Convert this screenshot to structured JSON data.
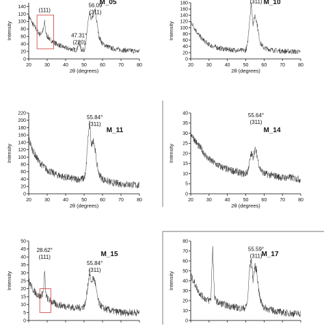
{
  "chart_data": [
    {
      "type": "line",
      "sample_label": "M_05",
      "xlabel": "2θ (degrees)",
      "ylabel": "Intensity",
      "xlim": [
        20,
        80
      ],
      "ylim": [
        0,
        150
      ],
      "xticks": [
        20,
        30,
        40,
        50,
        60,
        70,
        80
      ],
      "yticks": [
        0,
        20,
        40,
        60,
        80,
        100,
        120,
        140
      ],
      "annotations": [
        {
          "lines": [
            "(111)"
          ],
          "x": 28.6,
          "y": 125
        },
        {
          "lines": [
            "47.31°",
            "(220)"
          ],
          "x": 47.3,
          "y": 58
        },
        {
          "lines": [
            "56.09",
            "(311)"
          ],
          "x": 56.1,
          "y": 138
        }
      ],
      "highlight_box": {
        "x": [
          24.5,
          33.5
        ],
        "y": [
          27,
          117
        ]
      },
      "series": [
        {
          "x": [
            20,
            22,
            24,
            26,
            27,
            28,
            28.6,
            29.2,
            30,
            32,
            35,
            38,
            40,
            44,
            46,
            47.3,
            48.5,
            50,
            51,
            52,
            53,
            54,
            55,
            56,
            57,
            58,
            60,
            65,
            70,
            75,
            80
          ],
          "y": [
            115,
            95,
            80,
            65,
            70,
            78,
            100,
            72,
            60,
            50,
            40,
            33,
            29,
            25,
            24,
            45,
            24,
            25,
            40,
            95,
            120,
            105,
            118,
            130,
            95,
            60,
            40,
            28,
            24,
            22,
            20
          ]
        }
      ]
    },
    {
      "type": "line",
      "sample_label": "M_10",
      "xlabel": "2θ (degrees)",
      "ylabel": "Intensity",
      "xlim": [
        20,
        80
      ],
      "ylim": [
        0,
        180
      ],
      "xticks": [
        20,
        30,
        40,
        50,
        60,
        70,
        80
      ],
      "yticks": [
        0,
        20,
        40,
        60,
        80,
        100,
        120,
        140,
        160,
        180
      ],
      "annotations": [
        {
          "lines": [
            "(311)"
          ],
          "x": 55.6,
          "y": 178
        }
      ],
      "series": [
        {
          "x": [
            20,
            22,
            24,
            26,
            30,
            35,
            40,
            45,
            48,
            50,
            51,
            52,
            53,
            54,
            55,
            56,
            57,
            58,
            60,
            65,
            70,
            75,
            80
          ],
          "y": [
            120,
            100,
            80,
            65,
            45,
            35,
            30,
            28,
            27,
            28,
            45,
            120,
            175,
            110,
            140,
            120,
            80,
            50,
            35,
            28,
            25,
            24,
            22
          ]
        }
      ]
    },
    {
      "type": "line",
      "sample_label": "M_11",
      "xlabel": "2θ (degrees)",
      "ylabel": "Intensity",
      "xlim": [
        20,
        80
      ],
      "ylim": [
        0,
        220
      ],
      "xticks": [
        20,
        30,
        40,
        50,
        60,
        70,
        80
      ],
      "yticks": [
        0,
        20,
        40,
        60,
        80,
        100,
        120,
        140,
        160,
        180,
        200,
        220
      ],
      "annotations": [
        {
          "lines": [
            "55.84°",
            "(311)"
          ],
          "x": 55.8,
          "y": 203
        }
      ],
      "series": [
        {
          "x": [
            20,
            22,
            24,
            26,
            28,
            30,
            35,
            40,
            45,
            48,
            50,
            51,
            52,
            53,
            54,
            55,
            56,
            57,
            58,
            60,
            65,
            70,
            75,
            80
          ],
          "y": [
            150,
            120,
            100,
            85,
            75,
            65,
            52,
            45,
            40,
            40,
            42,
            60,
            150,
            190,
            130,
            150,
            120,
            80,
            55,
            40,
            30,
            27,
            25,
            23
          ]
        }
      ]
    },
    {
      "type": "line",
      "sample_label": "M_14",
      "xlabel": "2θ (degrees)",
      "ylabel": "Intensity",
      "xlim": [
        20,
        80
      ],
      "ylim": [
        0,
        40
      ],
      "xticks": [
        20,
        30,
        40,
        50,
        60,
        70,
        80
      ],
      "yticks": [
        0,
        5,
        10,
        15,
        20,
        25,
        30,
        35,
        40
      ],
      "annotations": [
        {
          "lines": [
            "55.64°",
            "(311)"
          ],
          "x": 55.6,
          "y": 38
        }
      ],
      "series": [
        {
          "x": [
            20,
            22,
            24,
            26,
            28,
            30,
            35,
            40,
            45,
            48,
            50,
            51,
            52,
            53,
            54,
            55,
            56,
            57,
            58,
            60,
            65,
            70,
            75,
            80
          ],
          "y": [
            30,
            27,
            24,
            22,
            19,
            17,
            14,
            12,
            11,
            10,
            10,
            11,
            15,
            20,
            18,
            22,
            20,
            15,
            12,
            10,
            9,
            8,
            8,
            7
          ]
        }
      ]
    },
    {
      "type": "line",
      "sample_label": "M_15",
      "xlabel": "2θ (degrees)",
      "ylabel": "Intensity",
      "xlim": [
        20,
        80
      ],
      "ylim": [
        0,
        50
      ],
      "xticks": [
        20,
        30,
        40,
        50,
        60,
        70,
        80
      ],
      "yticks": [
        0,
        5,
        10,
        15,
        20,
        25,
        30,
        35,
        40,
        45,
        50
      ],
      "annotations": [
        {
          "lines": [
            "28.62°",
            "(111)"
          ],
          "x": 28.6,
          "y": 43
        },
        {
          "lines": [
            "55.84°",
            "(311)"
          ],
          "x": 55.8,
          "y": 35
        }
      ],
      "highlight_box": {
        "x": [
          26,
          32
        ],
        "y": [
          5,
          20
        ]
      },
      "series": [
        {
          "x": [
            20,
            22,
            24,
            26,
            27,
            28,
            28.6,
            29.2,
            30,
            32,
            35,
            40,
            45,
            48,
            50,
            51,
            52,
            53,
            54,
            55,
            56,
            57,
            58,
            60,
            65,
            70,
            75,
            80
          ],
          "y": [
            25,
            20,
            17,
            15,
            16,
            18,
            32,
            17,
            14,
            12,
            10,
            9,
            8,
            8,
            9,
            12,
            22,
            30,
            24,
            27,
            24,
            16,
            11,
            8,
            6,
            5,
            5,
            5
          ]
        }
      ]
    },
    {
      "type": "line",
      "sample_label": "M_17",
      "xlabel": "2θ (degrees)",
      "ylabel": "Intensity",
      "xlim": [
        20,
        80
      ],
      "ylim": [
        0,
        80
      ],
      "xticks": [
        20,
        30,
        40,
        50,
        60,
        70,
        80
      ],
      "yticks": [
        0,
        10,
        20,
        30,
        40,
        50,
        60,
        70,
        80
      ],
      "annotations": [
        {
          "lines": [
            "55.59°",
            "(311)"
          ],
          "x": 55.6,
          "y": 70
        }
      ],
      "series": [
        {
          "x": [
            20,
            22,
            24,
            26,
            28,
            30,
            31,
            32,
            33,
            35,
            40,
            45,
            48,
            50,
            51,
            52,
            53,
            54,
            55,
            56,
            57,
            58,
            60,
            65,
            70,
            75,
            80
          ],
          "y": [
            45,
            38,
            30,
            25,
            22,
            20,
            22,
            75,
            22,
            18,
            15,
            13,
            12,
            13,
            20,
            50,
            62,
            40,
            55,
            50,
            32,
            20,
            13,
            10,
            8,
            7,
            7
          ]
        }
      ]
    }
  ]
}
